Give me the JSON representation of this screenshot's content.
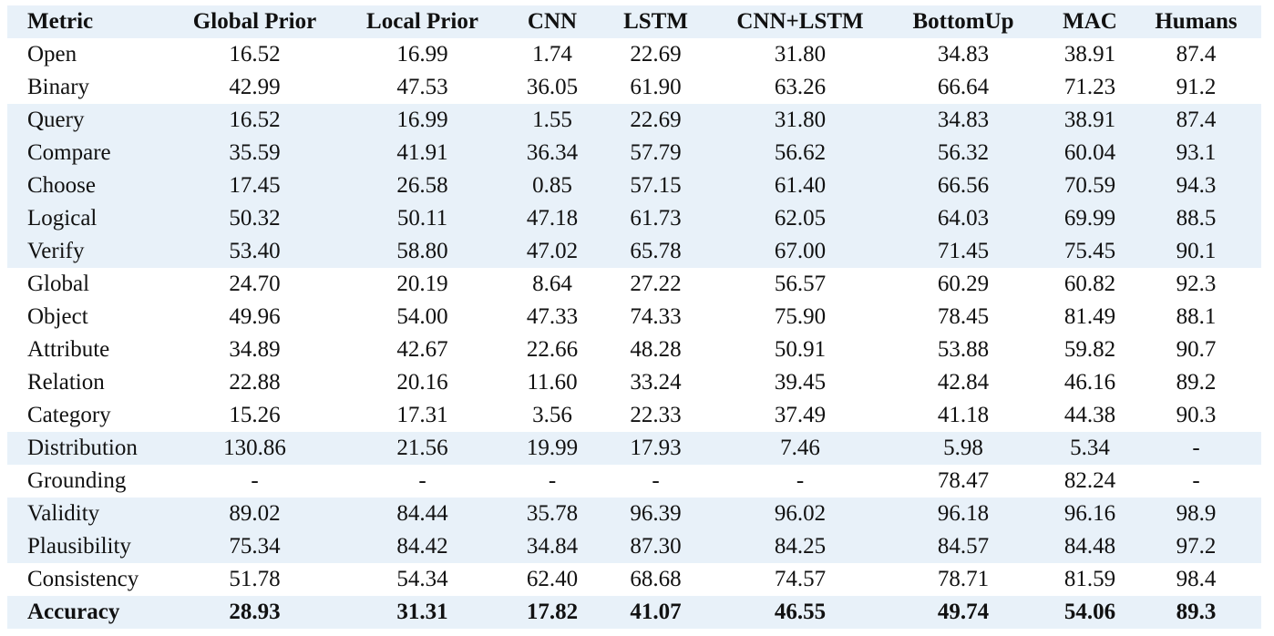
{
  "table": {
    "headers": [
      "Metric",
      "Global Prior",
      "Local Prior",
      "CNN",
      "LSTM",
      "CNN+LSTM",
      "BottomUp",
      "MAC",
      "Humans"
    ],
    "rows": [
      {
        "cells": [
          "Open",
          "16.52",
          "16.99",
          "1.74",
          "22.69",
          "31.80",
          "34.83",
          "38.91",
          "87.4"
        ],
        "shaded": false,
        "bold": false
      },
      {
        "cells": [
          "Binary",
          "42.99",
          "47.53",
          "36.05",
          "61.90",
          "63.26",
          "66.64",
          "71.23",
          "91.2"
        ],
        "shaded": false,
        "bold": false
      },
      {
        "cells": [
          "Query",
          "16.52",
          "16.99",
          "1.55",
          "22.69",
          "31.80",
          "34.83",
          "38.91",
          "87.4"
        ],
        "shaded": true,
        "bold": false
      },
      {
        "cells": [
          "Compare",
          "35.59",
          "41.91",
          "36.34",
          "57.79",
          "56.62",
          "56.32",
          "60.04",
          "93.1"
        ],
        "shaded": true,
        "bold": false
      },
      {
        "cells": [
          "Choose",
          "17.45",
          "26.58",
          "0.85",
          "57.15",
          "61.40",
          "66.56",
          "70.59",
          "94.3"
        ],
        "shaded": true,
        "bold": false
      },
      {
        "cells": [
          "Logical",
          "50.32",
          "50.11",
          "47.18",
          "61.73",
          "62.05",
          "64.03",
          "69.99",
          "88.5"
        ],
        "shaded": true,
        "bold": false
      },
      {
        "cells": [
          "Verify",
          "53.40",
          "58.80",
          "47.02",
          "65.78",
          "67.00",
          "71.45",
          "75.45",
          "90.1"
        ],
        "shaded": true,
        "bold": false
      },
      {
        "cells": [
          "Global",
          "24.70",
          "20.19",
          "8.64",
          "27.22",
          "56.57",
          "60.29",
          "60.82",
          "92.3"
        ],
        "shaded": false,
        "bold": false
      },
      {
        "cells": [
          "Object",
          "49.96",
          "54.00",
          "47.33",
          "74.33",
          "75.90",
          "78.45",
          "81.49",
          "88.1"
        ],
        "shaded": false,
        "bold": false
      },
      {
        "cells": [
          "Attribute",
          "34.89",
          "42.67",
          "22.66",
          "48.28",
          "50.91",
          "53.88",
          "59.82",
          "90.7"
        ],
        "shaded": false,
        "bold": false
      },
      {
        "cells": [
          "Relation",
          "22.88",
          "20.16",
          "11.60",
          "33.24",
          "39.45",
          "42.84",
          "46.16",
          "89.2"
        ],
        "shaded": false,
        "bold": false
      },
      {
        "cells": [
          "Category",
          "15.26",
          "17.31",
          "3.56",
          "22.33",
          "37.49",
          "41.18",
          "44.38",
          "90.3"
        ],
        "shaded": false,
        "bold": false
      },
      {
        "cells": [
          "Distribution",
          "130.86",
          "21.56",
          "19.99",
          "17.93",
          "7.46",
          "5.98",
          "5.34",
          "-"
        ],
        "shaded": true,
        "bold": false
      },
      {
        "cells": [
          "Grounding",
          "-",
          "-",
          "-",
          "-",
          "-",
          "78.47",
          "82.24",
          "-"
        ],
        "shaded": false,
        "bold": false
      },
      {
        "cells": [
          "Validity",
          "89.02",
          "84.44",
          "35.78",
          "96.39",
          "96.02",
          "96.18",
          "96.16",
          "98.9"
        ],
        "shaded": true,
        "bold": false
      },
      {
        "cells": [
          "Plausibility",
          "75.34",
          "84.42",
          "34.84",
          "87.30",
          "84.25",
          "84.57",
          "84.48",
          "97.2"
        ],
        "shaded": true,
        "bold": false
      },
      {
        "cells": [
          "Consistency",
          "51.78",
          "54.34",
          "62.40",
          "68.68",
          "74.57",
          "78.71",
          "81.59",
          "98.4"
        ],
        "shaded": false,
        "bold": false
      },
      {
        "cells": [
          "Accuracy",
          "28.93",
          "31.31",
          "17.82",
          "41.07",
          "46.55",
          "49.74",
          "54.06",
          "89.3"
        ],
        "shaded": true,
        "bold": true
      }
    ]
  },
  "colors": {
    "shade": "#e8f1f9",
    "text": "#111111",
    "background": "#ffffff"
  }
}
